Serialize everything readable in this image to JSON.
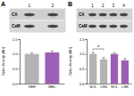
{
  "chart_data": [
    {
      "type": "bar",
      "panel_label": "A",
      "blot_rows": [
        "CA",
        "CaM"
      ],
      "lanes": [
        "1",
        "2"
      ],
      "categories": [
        "VEH",
        "MEL"
      ],
      "values": [
        1.0,
        1.05
      ],
      "errors": [
        0.04,
        0.05
      ],
      "colors": [
        "#b3b3b3",
        "#9c5fb5"
      ],
      "y_label": "Optic density (AU)",
      "ylim": [
        0,
        1.5
      ],
      "yticks": [
        {
          "value": 0,
          "label": "0.0"
        },
        0.5,
        {
          "value": 1,
          "label": "1.0"
        },
        {
          "value": 1.5,
          "label": "1.5"
        }
      ]
    },
    {
      "type": "bar",
      "panel_label": "B",
      "blot_rows": [
        "CA",
        "CaM"
      ],
      "lanes": [
        "1",
        "2",
        "3",
        "4"
      ],
      "categories": [
        "SOL",
        "CSK",
        "SOL",
        "CSK"
      ],
      "values": [
        1.0,
        0.82,
        1.0,
        0.78
      ],
      "errors": [
        0.05,
        0.06,
        0.04,
        0.06
      ],
      "colors": [
        "#b3b3b3",
        "#b3b3b3",
        "#9c5fb5",
        "#9c5fb5"
      ],
      "y_label": "Optic density (AU)",
      "annotation": "*",
      "ylim": [
        0,
        1.5
      ],
      "yticks": [
        {
          "value": 0,
          "label": "0.0"
        },
        0.5,
        {
          "value": 1,
          "label": "1.0"
        },
        {
          "value": 1.5,
          "label": "1.5"
        }
      ]
    }
  ]
}
